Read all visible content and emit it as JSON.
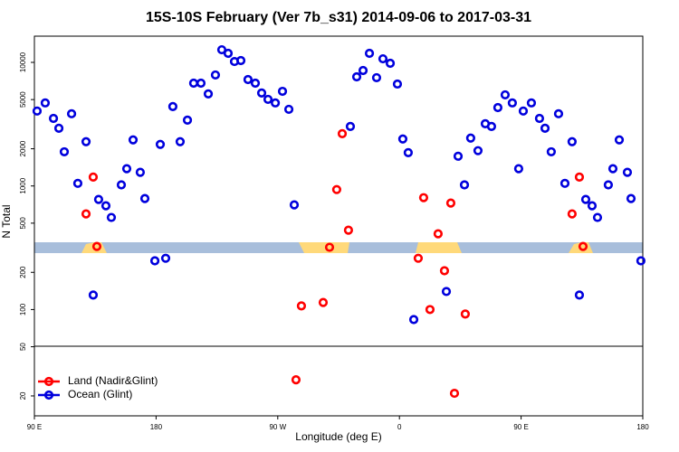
{
  "chart_data": {
    "type": "scatter",
    "title": "15S-10S February (Ver 7b_s31)   2014-09-06 to 2017-03-31",
    "x_label": "Longitude (deg E)",
    "y_label": "N Total",
    "log_y": true,
    "legend_position": "bottom-left",
    "xlim": [
      90,
      540
    ],
    "xticks": [
      {
        "value": 90,
        "label": "90 E"
      },
      {
        "value": 180,
        "label": "180"
      },
      {
        "value": 270,
        "label": "90 W"
      },
      {
        "value": 360,
        "label": "0"
      },
      {
        "value": 450,
        "label": "90 E"
      },
      {
        "value": 540,
        "label": "180"
      }
    ],
    "ylim": [
      13.8,
      16300
    ],
    "yticks": [
      20,
      50,
      100,
      200,
      500,
      1000,
      2000,
      5000,
      10000
    ],
    "series": [
      {
        "name": "Land (Nadir&Glint)",
        "color": "#ff0000",
        "x": [
          128.2,
          133.5,
          136.2,
          283.5,
          287.5,
          303.6,
          308.3,
          313.6,
          317.7,
          322.3,
          373.9,
          377.9,
          382.6,
          388.6,
          393.3,
          398.0,
          400.7,
          408.7,
          487.7,
          493.1,
          495.8
        ],
        "values": [
          594,
          1180,
          324,
          27,
          107,
          114,
          319,
          935,
          2650,
          439,
          260,
          804,
          100,
          410,
          206,
          727,
          21,
          92,
          594,
          1180,
          324
        ]
      },
      {
        "name": "Ocean (Glint)",
        "color": "#0000dd",
        "x": [
          92.0,
          98.0,
          104.1,
          108.1,
          112.1,
          117.5,
          122.1,
          128.2,
          133.5,
          137.5,
          142.9,
          146.9,
          154.3,
          158.3,
          163.0,
          168.3,
          171.7,
          179.1,
          183.1,
          187.1,
          192.4,
          197.8,
          203.2,
          207.8,
          213.2,
          218.6,
          223.9,
          228.6,
          233.3,
          238.0,
          242.7,
          248.0,
          253.4,
          258.1,
          262.8,
          268.2,
          273.5,
          278.2,
          282.2,
          323.7,
          328.4,
          333.1,
          337.8,
          343.1,
          347.8,
          353.2,
          358.5,
          362.5,
          366.5,
          370.6,
          394.7,
          403.4,
          408.1,
          412.7,
          418.1,
          423.5,
          428.1,
          432.8,
          438.2,
          443.5,
          448.2,
          451.6,
          457.6,
          463.6,
          467.7,
          472.3,
          477.7,
          482.4,
          487.7,
          493.1,
          497.8,
          502.5,
          506.5,
          514.5,
          517.9,
          522.6,
          528.6,
          531.3,
          538.6
        ],
        "values": [
          4040,
          4700,
          3520,
          2930,
          1890,
          3840,
          1050,
          2280,
          131,
          778,
          691,
          556,
          1020,
          1380,
          2360,
          1290,
          791,
          248,
          2170,
          260,
          4390,
          2280,
          3410,
          6790,
          6790,
          5560,
          7910,
          12650,
          11830,
          10160,
          10340,
          7260,
          6790,
          5650,
          5020,
          4700,
          5830,
          4170,
          703,
          3030,
          7640,
          8590,
          11830,
          7520,
          10690,
          9840,
          6680,
          2400,
          1860,
          83,
          140,
          1740,
          1020,
          2440,
          1930,
          3190,
          3030,
          4310,
          5460,
          4700,
          1380,
          4040,
          4700,
          3520,
          2930,
          1890,
          3840,
          1050,
          2280,
          131,
          778,
          691,
          556,
          1020,
          1380,
          2360,
          1290,
          791,
          248
        ]
      }
    ]
  }
}
